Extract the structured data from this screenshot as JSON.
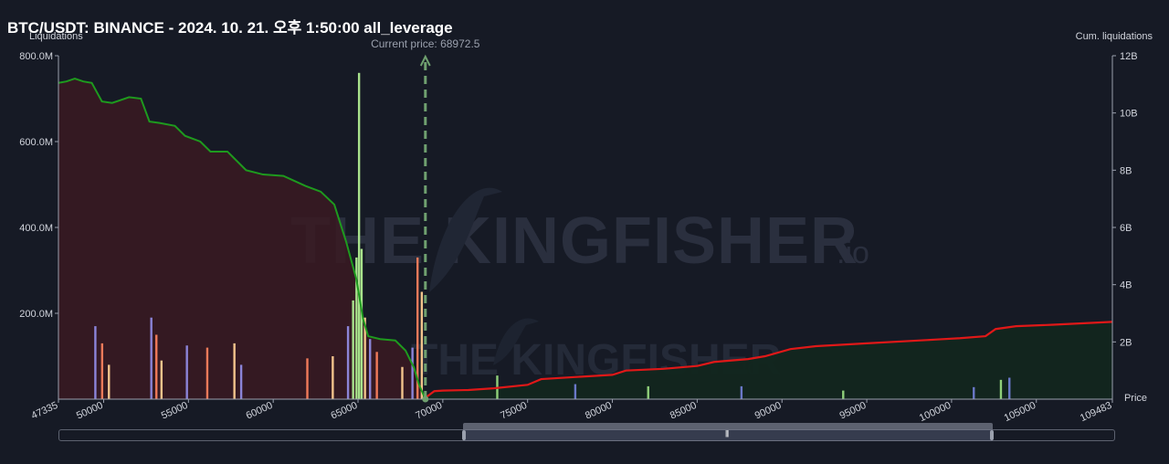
{
  "header": {
    "title": "BTC/USDT: BINANCE - 2024. 10. 21. 오후 1:50:00 all_leverage",
    "left_axis_label": "Liquidations",
    "right_axis_label": "Cum. liquidations",
    "x_axis_label": "Price",
    "current_price_label": "Current price: 68972.5"
  },
  "watermark": {
    "text_main": "THE KINGFISHER",
    "text_suffix": ".io"
  },
  "colors": {
    "background": "#161a25",
    "cum_short_line": "#e01818",
    "cum_long_line": "#1e9a1e",
    "long_fill": "#3a1a22",
    "short_fill": "#12261e",
    "current_price": "#6fa06f"
  },
  "chart_data": {
    "type": "bar",
    "title": "BTC/USDT: BINANCE - 2024. 10. 21. 오후 1:50:00 all_leverage",
    "xlabel": "Price",
    "ylabel": "Liquidations",
    "y2label": "Cum. liquidations",
    "xlim": [
      47335,
      109483
    ],
    "ylim": [
      0,
      800000000
    ],
    "y2lim": [
      0,
      12000000000
    ],
    "x_ticks": [
      "47335",
      "50000",
      "55000",
      "60000",
      "65000",
      "70000",
      "75000",
      "80000",
      "85000",
      "90000",
      "95000",
      "100000",
      "105000",
      "109483"
    ],
    "y_ticks": [
      "200.0M",
      "400.0M",
      "600.0M",
      "800.0M"
    ],
    "y2_ticks": [
      "2B",
      "4B",
      "6B",
      "8B",
      "10B",
      "12B"
    ],
    "current_price": 68972.5,
    "series": [
      {
        "name": "Cum. liquidations (long)",
        "type": "area",
        "x": [
          47335,
          47800,
          48300,
          48800,
          49300,
          49900,
          50500,
          51500,
          52200,
          52700,
          53300,
          54200,
          54800,
          55700,
          56300,
          57300,
          58400,
          59400,
          60600,
          61900,
          62800,
          63600,
          64300,
          64900,
          65300,
          65600,
          66300,
          67200,
          67800,
          68300,
          68600,
          68972
        ],
        "y": [
          11050000000,
          11100000000,
          11200000000,
          11100000000,
          11050000000,
          10400000000,
          10350000000,
          10550000000,
          10500000000,
          9700000000,
          9650000000,
          9550000000,
          9200000000,
          9000000000,
          8650000000,
          8650000000,
          8000000000,
          7850000000,
          7800000000,
          7450000000,
          7250000000,
          6800000000,
          5500000000,
          4200000000,
          2800000000,
          2200000000,
          2100000000,
          2050000000,
          1700000000,
          1100000000,
          500000000,
          0
        ]
      },
      {
        "name": "Cum. liquidations (short)",
        "type": "area",
        "x": [
          68972,
          69500,
          70000,
          71500,
          73000,
          75000,
          75800,
          78000,
          80000,
          80800,
          83000,
          85000,
          86000,
          88000,
          89000,
          90500,
          92000,
          95000,
          99000,
          100500,
          102000,
          102600,
          103800,
          106000,
          109483
        ],
        "y": [
          50000000,
          280000000,
          300000000,
          320000000,
          380000000,
          500000000,
          700000000,
          780000000,
          850000000,
          1000000000,
          1060000000,
          1160000000,
          1300000000,
          1400000000,
          1500000000,
          1750000000,
          1850000000,
          1950000000,
          2080000000,
          2130000000,
          2200000000,
          2450000000,
          2550000000,
          2600000000,
          2700000000
        ]
      },
      {
        "name": "Liquidations",
        "type": "bar",
        "x": [
          49500,
          49900,
          50300,
          52800,
          53100,
          53400,
          54900,
          56100,
          57700,
          58100,
          62000,
          63500,
          64400,
          64700,
          64900,
          65050,
          65200,
          65400,
          65700,
          66100,
          67600,
          68200,
          68500,
          68750,
          73200,
          77800,
          82100,
          87600,
          93600,
          101300,
          102900,
          103400
        ],
        "y": [
          170000000,
          130000000,
          80000000,
          190000000,
          150000000,
          90000000,
          125000000,
          120000000,
          130000000,
          80000000,
          95000000,
          100000000,
          170000000,
          230000000,
          330000000,
          760000000,
          350000000,
          190000000,
          140000000,
          110000000,
          75000000,
          120000000,
          330000000,
          250000000,
          55000000,
          35000000,
          30000000,
          30000000,
          20000000,
          28000000,
          45000000,
          50000000
        ]
      }
    ]
  }
}
